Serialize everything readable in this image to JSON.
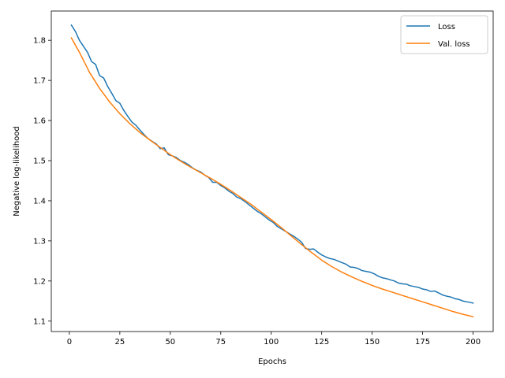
{
  "chart_data": {
    "type": "line",
    "title": "",
    "xlabel": "Epochs",
    "ylabel": "Negative log-likelihood",
    "xlim": [
      -8.95,
      209.95
    ],
    "ylim": [
      1.074,
      1.873
    ],
    "x_ticks": [
      0,
      25,
      50,
      75,
      100,
      125,
      150,
      175,
      200
    ],
    "x_tick_labels": [
      "0",
      "25",
      "50",
      "75",
      "100",
      "125",
      "150",
      "175",
      "200"
    ],
    "y_ticks": [
      1.1,
      1.2,
      1.3,
      1.4,
      1.5,
      1.6,
      1.7,
      1.8
    ],
    "y_tick_labels": [
      "1.1",
      "1.2",
      "1.3",
      "1.4",
      "1.5",
      "1.6",
      "1.7",
      "1.8"
    ],
    "grid": false,
    "legend_position": "top-right",
    "series": [
      {
        "name": "Loss",
        "color": "#1f77b4",
        "x": [
          1,
          3,
          5,
          7,
          9,
          11,
          13,
          15,
          17,
          19,
          21,
          23,
          25,
          27,
          29,
          31,
          33,
          35,
          37,
          39,
          41,
          43,
          45,
          47,
          49,
          51,
          53,
          55,
          57,
          59,
          61,
          63,
          65,
          67,
          69,
          71,
          73,
          75,
          77,
          79,
          81,
          83,
          85,
          87,
          89,
          91,
          93,
          95,
          97,
          99,
          101,
          103,
          105,
          107,
          109,
          111,
          113,
          115,
          117,
          119,
          121,
          123,
          125,
          127,
          129,
          131,
          133,
          135,
          137,
          139,
          141,
          143,
          145,
          147,
          149,
          151,
          153,
          155,
          157,
          159,
          161,
          163,
          165,
          167,
          169,
          171,
          173,
          175,
          177,
          179,
          181,
          183,
          185,
          187,
          189,
          191,
          193,
          195,
          197,
          199,
          200
        ],
        "values": [
          1.838,
          1.822,
          1.8,
          1.785,
          1.77,
          1.747,
          1.74,
          1.712,
          1.706,
          1.685,
          1.668,
          1.65,
          1.643,
          1.625,
          1.61,
          1.596,
          1.588,
          1.576,
          1.565,
          1.555,
          1.548,
          1.542,
          1.53,
          1.532,
          1.515,
          1.512,
          1.508,
          1.5,
          1.496,
          1.49,
          1.482,
          1.476,
          1.472,
          1.464,
          1.458,
          1.446,
          1.446,
          1.438,
          1.432,
          1.424,
          1.418,
          1.409,
          1.405,
          1.398,
          1.39,
          1.382,
          1.374,
          1.368,
          1.36,
          1.352,
          1.346,
          1.336,
          1.33,
          1.324,
          1.318,
          1.312,
          1.305,
          1.297,
          1.281,
          1.279,
          1.28,
          1.272,
          1.265,
          1.26,
          1.256,
          1.254,
          1.25,
          1.246,
          1.242,
          1.235,
          1.234,
          1.231,
          1.226,
          1.224,
          1.222,
          1.218,
          1.212,
          1.208,
          1.206,
          1.203,
          1.2,
          1.195,
          1.193,
          1.192,
          1.188,
          1.186,
          1.184,
          1.18,
          1.178,
          1.174,
          1.175,
          1.17,
          1.165,
          1.162,
          1.16,
          1.156,
          1.154,
          1.15,
          1.148,
          1.146,
          1.145
        ]
      },
      {
        "name": "Val. loss",
        "color": "#ff7f0e",
        "x": [
          1,
          5,
          10,
          15,
          20,
          25,
          30,
          35,
          40,
          45,
          50,
          55,
          60,
          65,
          70,
          75,
          80,
          85,
          90,
          95,
          100,
          105,
          110,
          115,
          120,
          125,
          130,
          135,
          140,
          145,
          150,
          155,
          160,
          165,
          170,
          175,
          180,
          185,
          190,
          195,
          200
        ],
        "values": [
          1.806,
          1.77,
          1.72,
          1.68,
          1.646,
          1.617,
          1.592,
          1.57,
          1.551,
          1.533,
          1.515,
          1.499,
          1.484,
          1.47,
          1.456,
          1.441,
          1.425,
          1.408,
          1.391,
          1.372,
          1.353,
          1.333,
          1.312,
          1.291,
          1.271,
          1.252,
          1.236,
          1.222,
          1.21,
          1.199,
          1.189,
          1.18,
          1.172,
          1.164,
          1.156,
          1.148,
          1.14,
          1.132,
          1.124,
          1.117,
          1.111
        ]
      }
    ]
  }
}
